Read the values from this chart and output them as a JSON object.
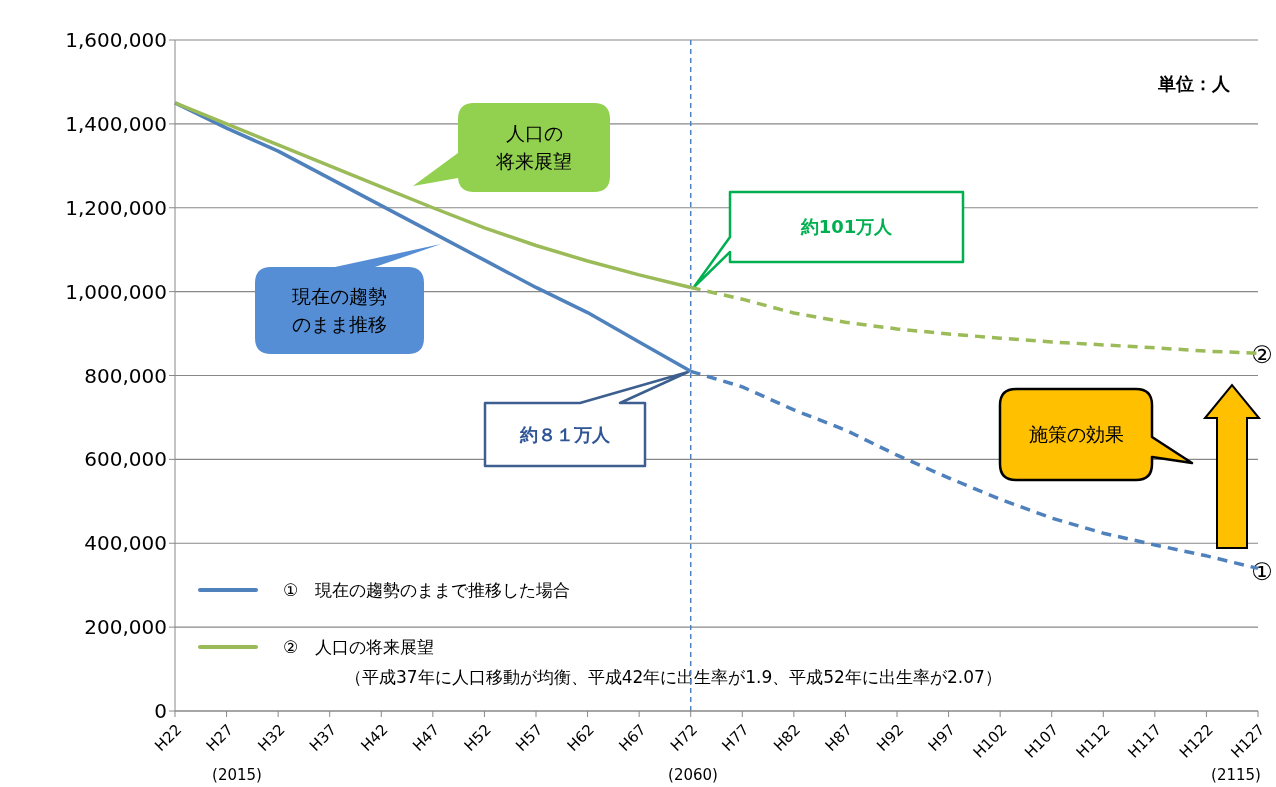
{
  "chart_data": {
    "type": "line",
    "categories": [
      "H22",
      "H27",
      "H32",
      "H37",
      "H42",
      "H47",
      "H52",
      "H57",
      "H62",
      "H67",
      "H72",
      "H77",
      "H82",
      "H87",
      "H92",
      "H97",
      "H102",
      "H107",
      "H112",
      "H117",
      "H122",
      "H127"
    ],
    "series": [
      {
        "name": "①　現在の趨勢のままで推移した場合",
        "color": "#4f81bd",
        "line_style": "solid",
        "values": [
          1450000,
          1390000,
          1335000,
          1270000,
          1205000,
          1140000,
          1075000,
          1010000,
          950000,
          880000,
          810000,
          null,
          null,
          null,
          null,
          null,
          null,
          null,
          null,
          null,
          null,
          null
        ]
      },
      {
        "color": "#4f81bd",
        "line_style": "dashed",
        "values": [
          null,
          null,
          null,
          null,
          null,
          null,
          null,
          null,
          null,
          null,
          810000,
          773000,
          718000,
          670000,
          610000,
          556000,
          505000,
          460000,
          424000,
          396000,
          370000,
          340000
        ]
      },
      {
        "name": "②　人口の将来展望",
        "color": "#9bbb59",
        "line_style": "solid",
        "values": [
          1450000,
          1400000,
          1350000,
          1300000,
          1250000,
          1200000,
          1152000,
          1110000,
          1073000,
          1040000,
          1010000,
          null,
          null,
          null,
          null,
          null,
          null,
          null,
          null,
          null,
          null,
          null
        ]
      },
      {
        "color": "#9bbb59",
        "line_style": "dashed",
        "values": [
          null,
          null,
          null,
          null,
          null,
          null,
          null,
          null,
          null,
          null,
          1010000,
          982000,
          949000,
          927000,
          911000,
          899000,
          889000,
          880000,
          873000,
          866000,
          858000,
          853000
        ]
      }
    ],
    "ylim": [
      0,
      1600000
    ],
    "yticks": [
      0,
      {
        "value": 200000,
        "label": "200,000"
      },
      {
        "value": 400000,
        "label": "400,000"
      },
      {
        "value": 600000,
        "label": "600,000"
      },
      {
        "value": 800000,
        "label": "800,000"
      },
      {
        "value": 1000000,
        "label": "1,000,000"
      },
      {
        "value": 1200000,
        "label": "1,200,000"
      },
      {
        "value": 1400000,
        "label": "1,400,000"
      },
      {
        "value": 1600000,
        "label": "1,600,000"
      }
    ],
    "grid": "y",
    "legend": "bottom left",
    "marker": "none",
    "ref_lines": [
      {
        "axis": "x",
        "value": "H72",
        "color": "#4f81bd",
        "line_style": "dashed"
      }
    ],
    "annotations": [
      "単位：人",
      "人口の将来展望",
      "現在の趨勢のまま推移",
      "約101万人",
      "約８１万人",
      "施策の効果",
      "①",
      "②",
      "（平成37年に人口移動が均衡、平成42年に出生率が1.9、平成52年に出生率が2.07）",
      "(2015)",
      "(2060)",
      "(2115)"
    ]
  }
}
